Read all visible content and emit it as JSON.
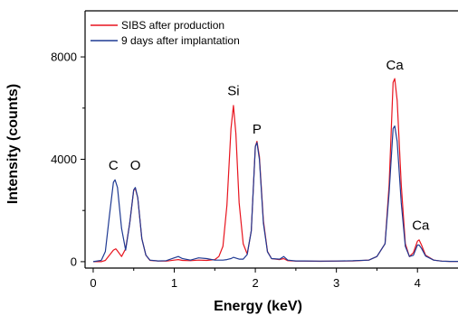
{
  "chart_data": {
    "type": "line",
    "title": "",
    "xlabel": "Energy (keV)",
    "ylabel": "Intensity (counts)",
    "xlim": [
      -0.1,
      4.5
    ],
    "ylim": [
      -250,
      9800
    ],
    "x_ticks": [
      0,
      1,
      2,
      3,
      4
    ],
    "x_tick_labels": [
      "0",
      "1",
      "2",
      "3",
      "4"
    ],
    "y_ticks": [
      0,
      4000,
      8000
    ],
    "y_tick_labels": [
      "0",
      "4000",
      "8000"
    ],
    "grid": false,
    "legend_position": "top-left",
    "series": [
      {
        "name": "SIBS after production",
        "color": "#e8141e",
        "x": [
          0.0,
          0.1,
          0.15,
          0.2,
          0.25,
          0.28,
          0.3,
          0.35,
          0.4,
          0.45,
          0.5,
          0.52,
          0.55,
          0.6,
          0.65,
          0.7,
          0.8,
          0.9,
          1.0,
          1.05,
          1.1,
          1.2,
          1.3,
          1.4,
          1.5,
          1.55,
          1.6,
          1.65,
          1.7,
          1.73,
          1.76,
          1.8,
          1.85,
          1.9,
          1.95,
          2.0,
          2.02,
          2.05,
          2.1,
          2.15,
          2.2,
          2.3,
          2.35,
          2.4,
          2.5,
          2.6,
          2.8,
          3.0,
          3.2,
          3.4,
          3.5,
          3.6,
          3.65,
          3.7,
          3.72,
          3.75,
          3.8,
          3.85,
          3.9,
          3.95,
          4.0,
          4.02,
          4.05,
          4.1,
          4.2,
          4.3,
          4.4,
          4.5
        ],
        "y": [
          0,
          0,
          50,
          250,
          450,
          500,
          420,
          200,
          500,
          1500,
          2800,
          2850,
          2500,
          900,
          250,
          50,
          30,
          20,
          60,
          80,
          50,
          40,
          60,
          50,
          80,
          200,
          600,
          2200,
          5200,
          6100,
          5000,
          2300,
          700,
          300,
          1200,
          4500,
          4700,
          4100,
          1600,
          400,
          120,
          80,
          120,
          40,
          20,
          20,
          15,
          20,
          30,
          60,
          200,
          700,
          3000,
          7000,
          7150,
          6300,
          3000,
          700,
          200,
          350,
          800,
          850,
          650,
          250,
          60,
          20,
          10,
          10
        ]
      },
      {
        "name": "9 days after implantation",
        "color": "#1f3a93",
        "x": [
          0.0,
          0.1,
          0.15,
          0.2,
          0.25,
          0.27,
          0.3,
          0.35,
          0.4,
          0.45,
          0.5,
          0.52,
          0.55,
          0.6,
          0.65,
          0.7,
          0.8,
          0.9,
          1.0,
          1.05,
          1.1,
          1.2,
          1.3,
          1.4,
          1.5,
          1.55,
          1.6,
          1.65,
          1.7,
          1.73,
          1.76,
          1.8,
          1.85,
          1.9,
          1.95,
          2.0,
          2.02,
          2.05,
          2.1,
          2.15,
          2.2,
          2.3,
          2.35,
          2.4,
          2.5,
          2.6,
          2.8,
          3.0,
          3.2,
          3.4,
          3.5,
          3.6,
          3.65,
          3.7,
          3.72,
          3.75,
          3.8,
          3.85,
          3.9,
          3.95,
          4.0,
          4.02,
          4.05,
          4.1,
          4.2,
          4.3,
          4.4,
          4.5
        ],
        "y": [
          0,
          50,
          400,
          1800,
          3100,
          3200,
          2900,
          1300,
          450,
          1500,
          2800,
          2900,
          2500,
          900,
          250,
          60,
          30,
          40,
          150,
          200,
          120,
          60,
          150,
          120,
          60,
          60,
          60,
          80,
          120,
          170,
          140,
          100,
          100,
          280,
          1200,
          4500,
          4650,
          4000,
          1500,
          380,
          120,
          100,
          200,
          60,
          30,
          30,
          20,
          25,
          35,
          60,
          200,
          700,
          2700,
          5200,
          5300,
          4700,
          2300,
          600,
          200,
          250,
          650,
          650,
          520,
          220,
          60,
          20,
          10,
          10
        ]
      }
    ],
    "annotations": [
      {
        "text": "C",
        "x": 0.25,
        "y": 3600
      },
      {
        "text": "O",
        "x": 0.52,
        "y": 3600
      },
      {
        "text": "Si",
        "x": 1.73,
        "y": 6500
      },
      {
        "text": "P",
        "x": 2.02,
        "y": 5000
      },
      {
        "text": "Ca",
        "x": 3.72,
        "y": 7500
      },
      {
        "text": "Ca",
        "x": 4.04,
        "y": 1250
      }
    ]
  }
}
